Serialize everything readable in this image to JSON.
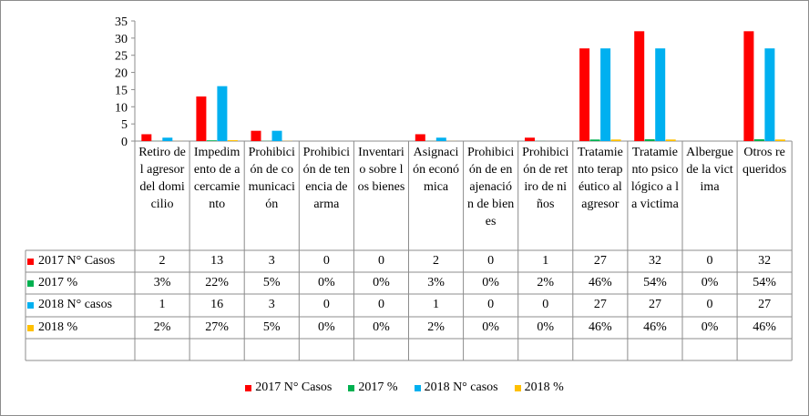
{
  "chart_data": {
    "type": "bar",
    "title": "",
    "xlabel": "",
    "ylabel": "",
    "ylim": [
      0,
      35
    ],
    "yticks": [
      0,
      5,
      10,
      15,
      20,
      25,
      30,
      35
    ],
    "grid": false,
    "legend_position": "bottom",
    "categories": [
      "Retiro del agresor del domicilio",
      "Impedimento de acercamiento",
      "Prohibición de comunicación",
      "Prohibición de tenencia de arma",
      "Inventario sobre los bienes",
      "Asignación económica",
      "Prohibición de enajenación de bienes",
      "Prohibición de retiro de niños",
      "Tratamiento terapéutico al agresor",
      "Tratamiento psicológico a la victima",
      "Albergue de la victima",
      "Otros requeridos"
    ],
    "series": [
      {
        "name": "2017 N° Casos",
        "color": "#ff0000",
        "plotted": true,
        "values": [
          2,
          13,
          3,
          0,
          0,
          2,
          0,
          1,
          27,
          32,
          0,
          32
        ],
        "labels": [
          "2",
          "13",
          "3",
          "0",
          "0",
          "2",
          "0",
          "1",
          "27",
          "32",
          "0",
          "32"
        ]
      },
      {
        "name": "2017 %",
        "color": "#00b050",
        "plotted": true,
        "values": [
          0.03,
          0.22,
          0.05,
          0,
          0,
          0.03,
          0,
          0.02,
          0.46,
          0.54,
          0,
          0.54
        ],
        "labels": [
          "3%",
          "22%",
          "5%",
          "0%",
          "0%",
          "3%",
          "0%",
          "2%",
          "46%",
          "54%",
          "0%",
          "54%"
        ]
      },
      {
        "name": "2018 N° casos",
        "color": "#00b0f0",
        "plotted": true,
        "values": [
          1,
          16,
          3,
          0,
          0,
          1,
          0,
          0,
          27,
          27,
          0,
          27
        ],
        "labels": [
          "1",
          "16",
          "3",
          "0",
          "0",
          "1",
          "0",
          "0",
          "27",
          "27",
          "0",
          "27"
        ]
      },
      {
        "name": "2018 %",
        "color": "#ffc000",
        "plotted": true,
        "values": [
          0.02,
          0.27,
          0.05,
          0,
          0,
          0.02,
          0,
          0,
          0.46,
          0.46,
          0,
          0.46
        ],
        "labels": [
          "2%",
          "27%",
          "5%",
          "0%",
          "0%",
          "2%",
          "0%",
          "0%",
          "46%",
          "46%",
          "0%",
          "46%"
        ]
      }
    ]
  }
}
